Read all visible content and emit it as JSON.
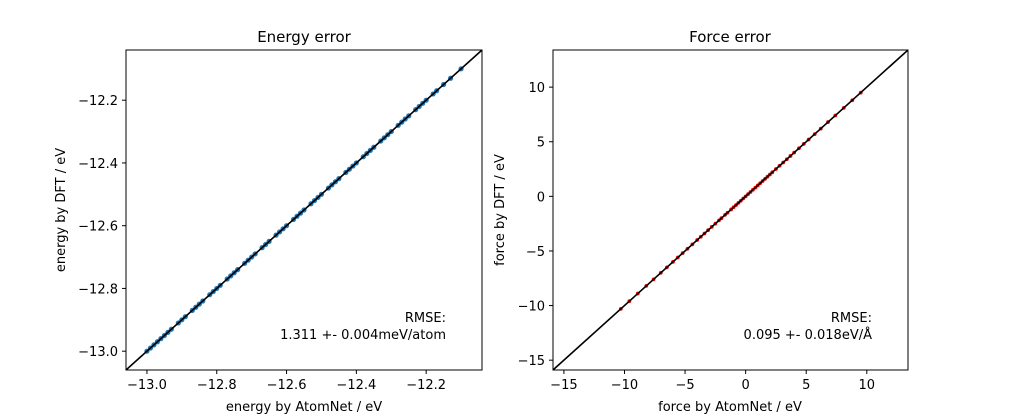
{
  "chart_data": [
    {
      "type": "scatter",
      "title": "Energy error",
      "xlabel": "energy by AtomNet / eV",
      "ylabel": "energy by DFT / eV",
      "xlim": [
        -13.06,
        -12.04
      ],
      "ylim": [
        -13.06,
        -12.04
      ],
      "xticks": [
        -13.0,
        -12.8,
        -12.6,
        -12.4,
        -12.2
      ],
      "yticks": [
        -13.0,
        -12.8,
        -12.6,
        -12.4,
        -12.2
      ],
      "xtick_labels": [
        "−13.0",
        "−12.8",
        "−12.6",
        "−12.4",
        "−12.2"
      ],
      "ytick_labels": [
        "−13.0",
        "−12.8",
        "−12.6",
        "−12.4",
        "−12.2"
      ],
      "reference_line": "y = x",
      "grid": false,
      "point_color": "#1f77b4",
      "line_color": "#000000",
      "annotation": {
        "line1": "RMSE:",
        "line2": "1.311 +- 0.004meV/atom",
        "position": "bottom-right"
      },
      "series": [
        {
          "x": [
            -13.0,
            -12.99,
            -12.98,
            -12.97,
            -12.96,
            -12.95,
            -12.94,
            -12.93,
            -12.91,
            -12.9,
            -12.89,
            -12.87,
            -12.86,
            -12.85,
            -12.84,
            -12.82,
            -12.81,
            -12.8,
            -12.79,
            -12.77,
            -12.76,
            -12.75,
            -12.74,
            -12.72,
            -12.71,
            -12.7,
            -12.69,
            -12.67,
            -12.66,
            -12.65,
            -12.63,
            -12.62,
            -12.61,
            -12.6,
            -12.58,
            -12.57,
            -12.56,
            -12.55,
            -12.53,
            -12.52,
            -12.51,
            -12.5,
            -12.48,
            -12.47,
            -12.46,
            -12.45,
            -12.43,
            -12.42,
            -12.41,
            -12.4,
            -12.38,
            -12.37,
            -12.36,
            -12.35,
            -12.33,
            -12.32,
            -12.31,
            -12.3,
            -12.28,
            -12.27,
            -12.26,
            -12.25,
            -12.23,
            -12.22,
            -12.21,
            -12.2,
            -12.18,
            -12.17,
            -12.15,
            -12.13,
            -12.1
          ],
          "y": [
            -13.0,
            -12.99,
            -12.98,
            -12.97,
            -12.96,
            -12.95,
            -12.94,
            -12.93,
            -12.91,
            -12.9,
            -12.89,
            -12.87,
            -12.86,
            -12.85,
            -12.84,
            -12.82,
            -12.81,
            -12.8,
            -12.79,
            -12.77,
            -12.76,
            -12.75,
            -12.74,
            -12.72,
            -12.71,
            -12.7,
            -12.69,
            -12.67,
            -12.66,
            -12.65,
            -12.63,
            -12.62,
            -12.61,
            -12.6,
            -12.58,
            -12.57,
            -12.56,
            -12.55,
            -12.53,
            -12.52,
            -12.51,
            -12.5,
            -12.48,
            -12.47,
            -12.46,
            -12.45,
            -12.43,
            -12.42,
            -12.41,
            -12.4,
            -12.38,
            -12.37,
            -12.36,
            -12.35,
            -12.33,
            -12.32,
            -12.31,
            -12.3,
            -12.28,
            -12.27,
            -12.26,
            -12.25,
            -12.23,
            -12.22,
            -12.21,
            -12.2,
            -12.18,
            -12.17,
            -12.15,
            -12.13,
            -12.1
          ]
        }
      ]
    },
    {
      "type": "scatter",
      "title": "Force error",
      "xlabel": "force by AtomNet / eV",
      "ylabel": "force by DFT / eV",
      "xlim": [
        -15.9,
        13.4
      ],
      "ylim": [
        -15.9,
        13.4
      ],
      "xticks": [
        -15,
        -10,
        -5,
        0,
        5,
        10
      ],
      "yticks": [
        -15,
        -10,
        -5,
        0,
        5,
        10
      ],
      "xtick_labels": [
        "−15",
        "−10",
        "−5",
        "0",
        "5",
        "10"
      ],
      "ytick_labels": [
        "−15",
        "−10",
        "−5",
        "0",
        "5",
        "10"
      ],
      "reference_line": "y = x",
      "grid": false,
      "point_color": "#ff0000",
      "line_color": "#000000",
      "annotation": {
        "line1": "RMSE:",
        "line2": "0.095 +- 0.018eV/Å",
        "position": "bottom-right"
      },
      "series": [
        {
          "x": [
            -10.3,
            -9.6,
            -8.9,
            -8.2,
            -7.6,
            -7.0,
            -6.5,
            -6.0,
            -5.6,
            -5.2,
            -4.8,
            -4.4,
            -4.0,
            -3.7,
            -3.4,
            -3.1,
            -2.8,
            -2.5,
            -2.2,
            -2.0,
            -1.7,
            -1.5,
            -1.2,
            -1.0,
            -0.8,
            -0.6,
            -0.4,
            -0.2,
            0.0,
            0.2,
            0.4,
            0.6,
            0.8,
            1.0,
            1.2,
            1.4,
            1.6,
            1.8,
            2.0,
            2.2,
            2.5,
            2.8,
            3.1,
            3.4,
            3.7,
            4.0,
            4.4,
            4.8,
            5.2,
            5.7,
            6.2,
            6.8,
            7.4,
            8.1,
            8.8,
            9.5
          ],
          "y": [
            -10.3,
            -9.6,
            -8.9,
            -8.2,
            -7.6,
            -7.0,
            -6.5,
            -6.0,
            -5.6,
            -5.2,
            -4.8,
            -4.4,
            -4.0,
            -3.7,
            -3.4,
            -3.1,
            -2.8,
            -2.5,
            -2.2,
            -2.0,
            -1.7,
            -1.5,
            -1.2,
            -1.0,
            -0.8,
            -0.6,
            -0.4,
            -0.2,
            0.0,
            0.2,
            0.4,
            0.6,
            0.8,
            1.0,
            1.2,
            1.4,
            1.6,
            1.8,
            2.0,
            2.2,
            2.5,
            2.8,
            3.1,
            3.4,
            3.7,
            4.0,
            4.4,
            4.8,
            5.2,
            5.7,
            6.2,
            6.8,
            7.4,
            8.1,
            8.8,
            9.5
          ]
        }
      ]
    }
  ]
}
